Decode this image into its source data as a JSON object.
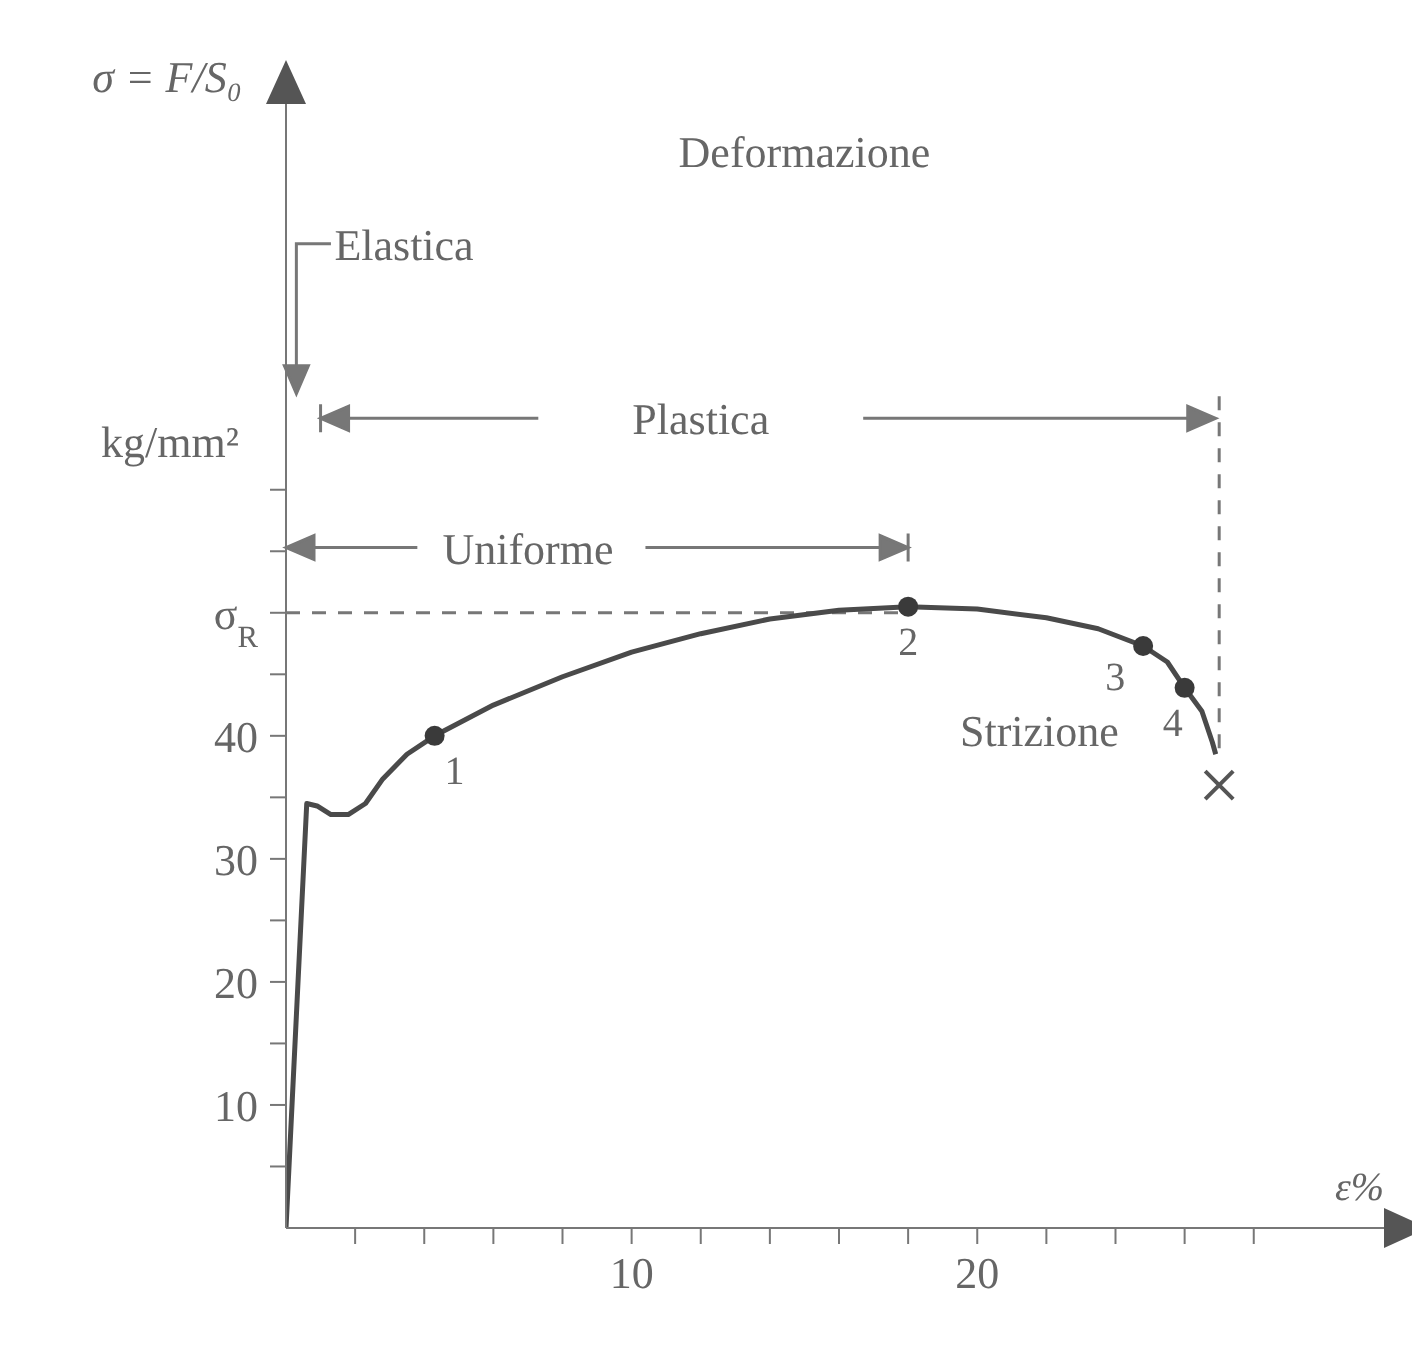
{
  "chart_data": {
    "type": "line",
    "ylabel": "σ = F/S₀",
    "xlabel": "ε%",
    "xlim": [
      0,
      32
    ],
    "xticks": [
      {
        "value": 2,
        "label": null
      },
      {
        "value": 4,
        "label": null
      },
      {
        "value": 6,
        "label": null
      },
      {
        "value": 8,
        "label": null
      },
      10,
      {
        "value": 12,
        "label": null
      },
      {
        "value": 14,
        "label": null
      },
      {
        "value": 16,
        "label": null
      },
      {
        "value": 18,
        "label": null
      },
      20,
      {
        "value": 22,
        "label": null
      },
      {
        "value": 24,
        "label": null
      },
      {
        "value": 26,
        "label": null
      },
      {
        "value": 28,
        "label": null
      }
    ],
    "ylim": [
      0,
      92
    ],
    "yticks": [
      {
        "value": 5,
        "label": null
      },
      10,
      {
        "value": 15,
        "label": null
      },
      20,
      {
        "value": 25,
        "label": null
      },
      30,
      {
        "value": 35,
        "label": null
      },
      40,
      {
        "value": 45,
        "label": null
      },
      {
        "value": 50,
        "label": "σ$_{R}$"
      },
      {
        "value": 55,
        "label": null
      },
      {
        "value": 60,
        "label": null
      }
    ],
    "series": [
      {
        "color": "#4a4a4a",
        "marker": "none",
        "x": [
          0,
          0.6,
          0.9,
          1.3,
          1.8,
          2.3,
          2.8,
          3.5,
          4.3,
          6,
          8,
          10,
          12,
          14,
          16,
          18,
          20,
          22,
          23.5,
          24.8,
          25.5,
          26,
          26.5,
          26.8,
          26.9
        ],
        "values": [
          0,
          34.5,
          34.3,
          33.6,
          33.6,
          34.5,
          36.5,
          38.5,
          40,
          42.5,
          44.8,
          46.8,
          48.3,
          49.5,
          50.2,
          50.5,
          50.3,
          49.6,
          48.7,
          47.3,
          46,
          43.9,
          42,
          39.5,
          38.5
        ]
      },
      {
        "type": "scatter",
        "color": "#3a3a3a",
        "marker": "circle",
        "x": [
          4.3,
          18,
          24.8,
          26
        ],
        "values": [
          40,
          50.5,
          47.3,
          43.9
        ]
      },
      {
        "type": "scatter",
        "color": "#555555",
        "marker": "cross",
        "x": [
          27
        ],
        "values": [
          36
        ]
      }
    ],
    "ref_lines": [
      {
        "axis": "y",
        "value": 50,
        "line_style": "dashed",
        "color": "#777777"
      },
      {
        "axis": "x",
        "value": 27,
        "line_style": "dashed",
        "color": "#777777"
      }
    ],
    "annotations": [
      "Deformazione",
      "Elastica",
      "Plastica",
      "Uniforme",
      "Strizione",
      "kg/mm²",
      {
        "text": "1",
        "x": 4.3,
        "y": 40
      },
      {
        "text": "2",
        "x": 18,
        "y": 50.5
      },
      {
        "text": "3",
        "x": 24.8,
        "y": 47.3
      },
      {
        "text": "4",
        "x": 26,
        "y": 43.9
      }
    ]
  }
}
